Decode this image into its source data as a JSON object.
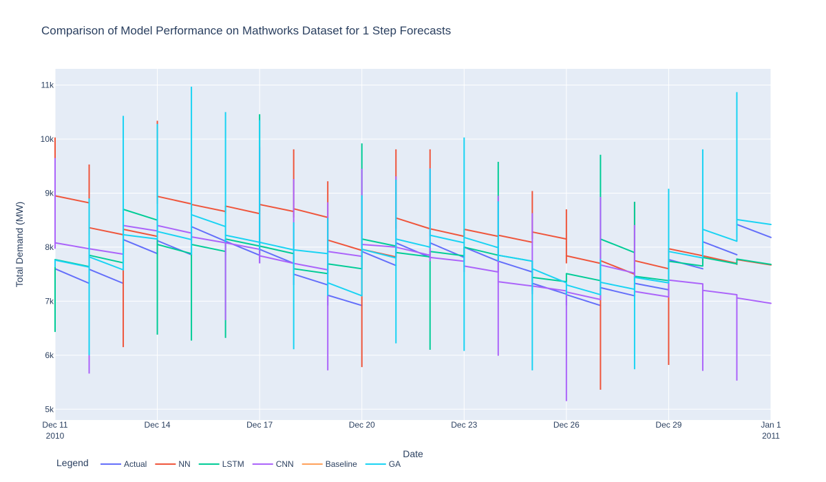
{
  "chart_data": {
    "type": "line",
    "title": "Comparison of Model Performance on Mathworks Dataset for 1 Step Forecasts",
    "xlabel": "Date",
    "ylabel": "Total Demand (MW)",
    "x_start_day": 0,
    "x_end_day": 21,
    "x_ticks": [
      {
        "day": 0,
        "label": "Dec 11",
        "sublabel": "2010"
      },
      {
        "day": 3,
        "label": "Dec 14"
      },
      {
        "day": 6,
        "label": "Dec 17"
      },
      {
        "day": 9,
        "label": "Dec 20"
      },
      {
        "day": 12,
        "label": "Dec 23"
      },
      {
        "day": 15,
        "label": "Dec 26"
      },
      {
        "day": 18,
        "label": "Dec 29"
      },
      {
        "day": 21,
        "label": "Jan 1",
        "sublabel": "2011"
      }
    ],
    "ylim": [
      4800,
      11300
    ],
    "y_ticks": [
      {
        "value": 5000,
        "label": "5k"
      },
      {
        "value": 6000,
        "label": "6k"
      },
      {
        "value": 7000,
        "label": "7k"
      },
      {
        "value": 8000,
        "label": "8k"
      },
      {
        "value": 9000,
        "label": "9k"
      },
      {
        "value": 10000,
        "label": "10k"
      },
      {
        "value": 11000,
        "label": "11k"
      }
    ],
    "grid": true,
    "legend": {
      "title": "Legend",
      "placement": "bottom-left"
    },
    "series": [
      {
        "name": "Actual",
        "color": "#636efa",
        "segments": [
          {
            "start": 7600,
            "end": 7330,
            "low": 7330,
            "high": 7600
          },
          {
            "start": 7590,
            "end": 7330,
            "low": 7330,
            "high": 7590
          },
          {
            "start": 8140,
            "end": 7880,
            "low": 7880,
            "high": 8140
          },
          {
            "start": 8120,
            "end": 7860,
            "low": 7860,
            "high": 8120
          },
          {
            "start": 8380,
            "end": 8110,
            "low": 8110,
            "high": 8380
          },
          {
            "start": 8110,
            "end": 7850,
            "low": 7850,
            "high": 8110
          },
          {
            "start": 7960,
            "end": 7700,
            "low": 7700,
            "high": 7960
          },
          {
            "start": 7500,
            "end": 7300,
            "low": 7300,
            "high": 7500
          },
          {
            "start": 7110,
            "end": 6920,
            "low": 6920,
            "high": 7110
          },
          {
            "start": 7920,
            "end": 7660,
            "low": 7660,
            "high": 7920
          },
          {
            "start": 8080,
            "end": 7810,
            "low": 7810,
            "high": 8080
          },
          {
            "start": 8080,
            "end": 7810,
            "low": 7810,
            "high": 8080
          },
          {
            "start": 8000,
            "end": 7740,
            "low": 7740,
            "high": 8000
          },
          {
            "start": 7740,
            "end": 7540,
            "low": 7540,
            "high": 7740
          },
          {
            "start": 7330,
            "end": 7130,
            "low": 7130,
            "high": 7330
          },
          {
            "start": 7120,
            "end": 6920,
            "low": 6920,
            "high": 7120
          },
          {
            "start": 7250,
            "end": 7100,
            "low": 7100,
            "high": 7250
          },
          {
            "start": 7330,
            "end": 7210,
            "low": 7210,
            "high": 7330
          },
          {
            "start": 7770,
            "end": 7600,
            "low": 7600,
            "high": 7770
          },
          {
            "start": 8100,
            "end": 7860,
            "low": 7860,
            "high": 8100
          },
          {
            "start": 8420,
            "end": 8180,
            "low": 8180,
            "high": 8420
          }
        ]
      },
      {
        "name": "NN",
        "color": "#ef553b",
        "segments": [
          {
            "start": 8950,
            "end": 8820,
            "low": 8820,
            "high": 10030
          },
          {
            "start": 8360,
            "end": 8230,
            "low": 8230,
            "high": 9530
          },
          {
            "start": 8330,
            "end": 8200,
            "low": 6150,
            "high": 8330
          },
          {
            "start": 8940,
            "end": 8800,
            "low": 8800,
            "high": 10340
          },
          {
            "start": 8790,
            "end": 8660,
            "low": 8660,
            "high": 8790
          },
          {
            "start": 8760,
            "end": 8620,
            "low": 8620,
            "high": 8760
          },
          {
            "start": 8790,
            "end": 8660,
            "low": 8660,
            "high": 8790
          },
          {
            "start": 8710,
            "end": 8550,
            "low": 8550,
            "high": 9810
          },
          {
            "start": 8130,
            "end": 7940,
            "low": 7940,
            "high": 9220
          },
          {
            "start": 7960,
            "end": 7820,
            "low": 5780,
            "high": 7960
          },
          {
            "start": 8540,
            "end": 8340,
            "low": 8340,
            "high": 9810
          },
          {
            "start": 8340,
            "end": 8200,
            "low": 8200,
            "high": 9810
          },
          {
            "start": 8330,
            "end": 8200,
            "low": 8200,
            "high": 8330
          },
          {
            "start": 8220,
            "end": 8090,
            "low": 8090,
            "high": 8220
          },
          {
            "start": 8280,
            "end": 8150,
            "low": 8150,
            "high": 9040
          },
          {
            "start": 7840,
            "end": 7700,
            "low": 7700,
            "high": 8700
          },
          {
            "start": 7750,
            "end": 7500,
            "low": 5360,
            "high": 7750
          },
          {
            "start": 7750,
            "end": 7600,
            "low": 7600,
            "high": 8830
          },
          {
            "start": 7970,
            "end": 7840,
            "low": 5820,
            "high": 7970
          },
          {
            "start": 7840,
            "end": 7700,
            "low": 7700,
            "high": 7840
          },
          {
            "start": 7770,
            "end": 7670,
            "low": 7670,
            "high": 7770
          }
        ]
      },
      {
        "name": "LSTM",
        "color": "#00cc96",
        "segments": [
          {
            "start": 7770,
            "end": 7640,
            "low": 6430,
            "high": 7770
          },
          {
            "start": 7850,
            "end": 7710,
            "low": 7640,
            "high": 7850
          },
          {
            "start": 8700,
            "end": 8500,
            "low": 7710,
            "high": 8700
          },
          {
            "start": 8050,
            "end": 7880,
            "low": 6380,
            "high": 8500
          },
          {
            "start": 8050,
            "end": 7920,
            "low": 6270,
            "high": 8050
          },
          {
            "start": 8150,
            "end": 8020,
            "low": 6320,
            "high": 8150
          },
          {
            "start": 8020,
            "end": 7880,
            "low": 7880,
            "high": 10460
          },
          {
            "start": 7600,
            "end": 7510,
            "low": 7510,
            "high": 7880
          },
          {
            "start": 7690,
            "end": 7600,
            "low": 7510,
            "high": 7690
          },
          {
            "start": 8150,
            "end": 8020,
            "low": 7600,
            "high": 9920
          },
          {
            "start": 7900,
            "end": 7820,
            "low": 7820,
            "high": 8020
          },
          {
            "start": 7920,
            "end": 7840,
            "low": 6100,
            "high": 7920
          },
          {
            "start": 8000,
            "end": 7850,
            "low": 7840,
            "high": 8000
          },
          {
            "start": 7850,
            "end": 7740,
            "low": 7740,
            "high": 9580
          },
          {
            "start": 7440,
            "end": 7360,
            "low": 7360,
            "high": 7740
          },
          {
            "start": 7510,
            "end": 7380,
            "low": 7360,
            "high": 7510
          },
          {
            "start": 8150,
            "end": 7900,
            "low": 7380,
            "high": 9710
          },
          {
            "start": 7460,
            "end": 7380,
            "low": 7380,
            "high": 8840
          },
          {
            "start": 7740,
            "end": 7650,
            "low": 7380,
            "high": 7740
          },
          {
            "start": 7810,
            "end": 7690,
            "low": 7650,
            "high": 7810
          },
          {
            "start": 7780,
            "end": 7680,
            "low": 7680,
            "high": 7780
          }
        ]
      },
      {
        "name": "CNN",
        "color": "#ab63fa",
        "segments": [
          {
            "start": 8080,
            "end": 7970,
            "low": 7970,
            "high": 9650
          },
          {
            "start": 7970,
            "end": 7870,
            "low": 5660,
            "high": 7970
          },
          {
            "start": 8400,
            "end": 8300,
            "low": 7870,
            "high": 8400
          },
          {
            "start": 8400,
            "end": 8260,
            "low": 8260,
            "high": 8400
          },
          {
            "start": 8190,
            "end": 8080,
            "low": 8080,
            "high": 8260
          },
          {
            "start": 8080,
            "end": 7960,
            "low": 6650,
            "high": 8080
          },
          {
            "start": 7840,
            "end": 7700,
            "low": 7700,
            "high": 9850
          },
          {
            "start": 7700,
            "end": 7580,
            "low": 7580,
            "high": 9260
          },
          {
            "start": 7920,
            "end": 7830,
            "low": 5720,
            "high": 8830
          },
          {
            "start": 8050,
            "end": 8000,
            "low": 7830,
            "high": 9450
          },
          {
            "start": 8000,
            "end": 7850,
            "low": 7850,
            "high": 9310
          },
          {
            "start": 7810,
            "end": 7740,
            "low": 7740,
            "high": 9460
          },
          {
            "start": 7650,
            "end": 7540,
            "low": 7540,
            "high": 7740
          },
          {
            "start": 7360,
            "end": 7280,
            "low": 5990,
            "high": 8950
          },
          {
            "start": 7280,
            "end": 7190,
            "low": 7190,
            "high": 8630
          },
          {
            "start": 7170,
            "end": 7030,
            "low": 5150,
            "high": 7170
          },
          {
            "start": 7670,
            "end": 7520,
            "low": 7030,
            "high": 8930
          },
          {
            "start": 7180,
            "end": 7080,
            "low": 7080,
            "high": 8410
          },
          {
            "start": 7390,
            "end": 7320,
            "low": 7080,
            "high": 7390
          },
          {
            "start": 7200,
            "end": 7120,
            "low": 5710,
            "high": 7320
          },
          {
            "start": 7060,
            "end": 6960,
            "low": 5530,
            "high": 7120
          }
        ]
      },
      {
        "name": "Baseline",
        "color": "#ffa15a",
        "segments": []
      },
      {
        "name": "GA",
        "color": "#19d3f3",
        "segments": [
          {
            "start": 7760,
            "end": 7630,
            "low": 7630,
            "high": 7760
          },
          {
            "start": 7820,
            "end": 7580,
            "low": 6000,
            "high": 8900
          },
          {
            "start": 8230,
            "end": 8150,
            "low": 7580,
            "high": 10430
          },
          {
            "start": 8290,
            "end": 8140,
            "low": 8140,
            "high": 10280
          },
          {
            "start": 8600,
            "end": 8380,
            "low": 7860,
            "high": 10970
          },
          {
            "start": 8220,
            "end": 8090,
            "low": 8090,
            "high": 10500
          },
          {
            "start": 8090,
            "end": 7950,
            "low": 7950,
            "high": 10350
          },
          {
            "start": 7950,
            "end": 7880,
            "low": 6110,
            "high": 8460
          },
          {
            "start": 7340,
            "end": 7100,
            "low": 7100,
            "high": 8540
          },
          {
            "start": 7960,
            "end": 7800,
            "low": 7100,
            "high": 8960
          },
          {
            "start": 8150,
            "end": 8000,
            "low": 6220,
            "high": 9250
          },
          {
            "start": 8220,
            "end": 8080,
            "low": 8000,
            "high": 9450
          },
          {
            "start": 8180,
            "end": 7990,
            "low": 6080,
            "high": 10030
          },
          {
            "start": 7850,
            "end": 7740,
            "low": 7740,
            "high": 8850
          },
          {
            "start": 7600,
            "end": 7340,
            "low": 5720,
            "high": 7740
          },
          {
            "start": 7300,
            "end": 7120,
            "low": 7120,
            "high": 7340
          },
          {
            "start": 7350,
            "end": 7220,
            "low": 7120,
            "high": 7780
          },
          {
            "start": 7440,
            "end": 7340,
            "low": 5740,
            "high": 7440
          },
          {
            "start": 7920,
            "end": 7800,
            "low": 7340,
            "high": 9080
          },
          {
            "start": 8330,
            "end": 8110,
            "low": 7800,
            "high": 9810
          },
          {
            "start": 8510,
            "end": 8420,
            "low": 8110,
            "high": 10870
          }
        ]
      }
    ]
  }
}
